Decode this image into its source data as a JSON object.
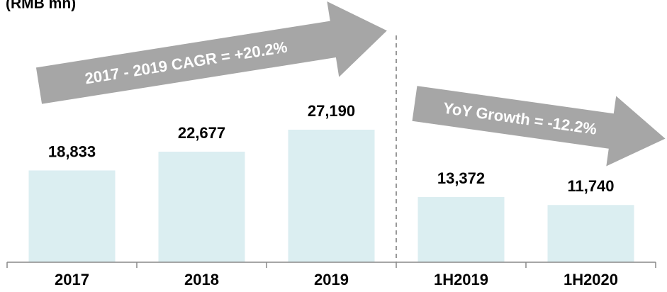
{
  "chart_data": {
    "type": "bar",
    "title": "(RMB mn)",
    "categories": [
      "2017",
      "2018",
      "2019",
      "1H2019",
      "1H2020"
    ],
    "values": [
      18833,
      22677,
      27190,
      13372,
      11740
    ],
    "value_labels": [
      "18,833",
      "22,677",
      "27,190",
      "13,372",
      "11,740"
    ],
    "color": "#dbeef1",
    "annotations": [
      "2017 - 2019 CAGR = +20.2%",
      "YoY Growth = -12.2%"
    ]
  }
}
